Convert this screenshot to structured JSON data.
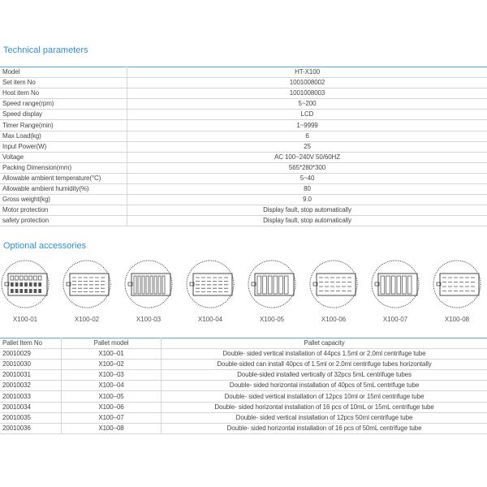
{
  "technical": {
    "title": "Technical parameters",
    "rows": [
      [
        "Model",
        "HT-X100"
      ],
      [
        "Set item No",
        "1001008002"
      ],
      [
        "Host item No",
        "1001008003"
      ],
      [
        "Speed range(rpm)",
        "5~200"
      ],
      [
        "Speed display",
        "LCD"
      ],
      [
        "Timer Range(min)",
        "1~9999"
      ],
      [
        "Max Load(kg)",
        "6"
      ],
      [
        "Input Power(W)",
        "25"
      ],
      [
        "Voltage",
        "AC 100~240V 50/60HZ"
      ],
      [
        "Packing Dimension(mm)",
        "565*280*300"
      ],
      [
        "Allowable ambient temperature(°C)",
        "5~40"
      ],
      [
        "Allowable ambient humidity(%)",
        "80"
      ],
      [
        "Gross weight(kg)",
        "9.0"
      ],
      [
        "Motor protection",
        "Display fault, stop automatically"
      ],
      [
        "safety protection",
        "Display fault, stop automatically"
      ]
    ]
  },
  "accessories": {
    "title": "Optional accessories",
    "items": [
      "X100-01",
      "X100-02",
      "X100-03",
      "X100-04",
      "X100-05",
      "X100-06",
      "X100-07",
      "X100-08"
    ]
  },
  "pallets": {
    "headers": [
      "Pallet Item No",
      "Pallet model",
      "Pallet capacity"
    ],
    "rows": [
      [
        "20010029",
        "X100–01",
        "Double- sided vertical installation of 44pcs 1.5ml or 2.0ml centrifuge tube"
      ],
      [
        "20010030",
        "X100–02",
        "Double-sided can install 40pcs of 1.5ml or 2.0ml centrifuge tubes horizontally"
      ],
      [
        "20010031",
        "X100–03",
        "Double-sided installed vertically of 32pcs 5mL centrifuge tubes"
      ],
      [
        "20010032",
        "X100–04",
        "Double- sided horizontal installation of 40pcs of 5mL centrifuge tube"
      ],
      [
        "20010033",
        "X100–05",
        "Double- sided vertical installation of 12pcs 10ml or 15ml centrifuge tube"
      ],
      [
        "20010034",
        "X100–06",
        "Double- sided horizontal installation of 16 pcs of 10mL or 15mL centrifuge tube"
      ],
      [
        "20010035",
        "X100–07",
        "Double- sided vertical installation of 12pcs 50ml centrifuge tube"
      ],
      [
        "20010036",
        "X100–08",
        "Double- sided horizontal installation of 16 pcs of 50mL centrifuge tube"
      ]
    ]
  },
  "colors": {
    "accent": "#2f8fd0"
  }
}
